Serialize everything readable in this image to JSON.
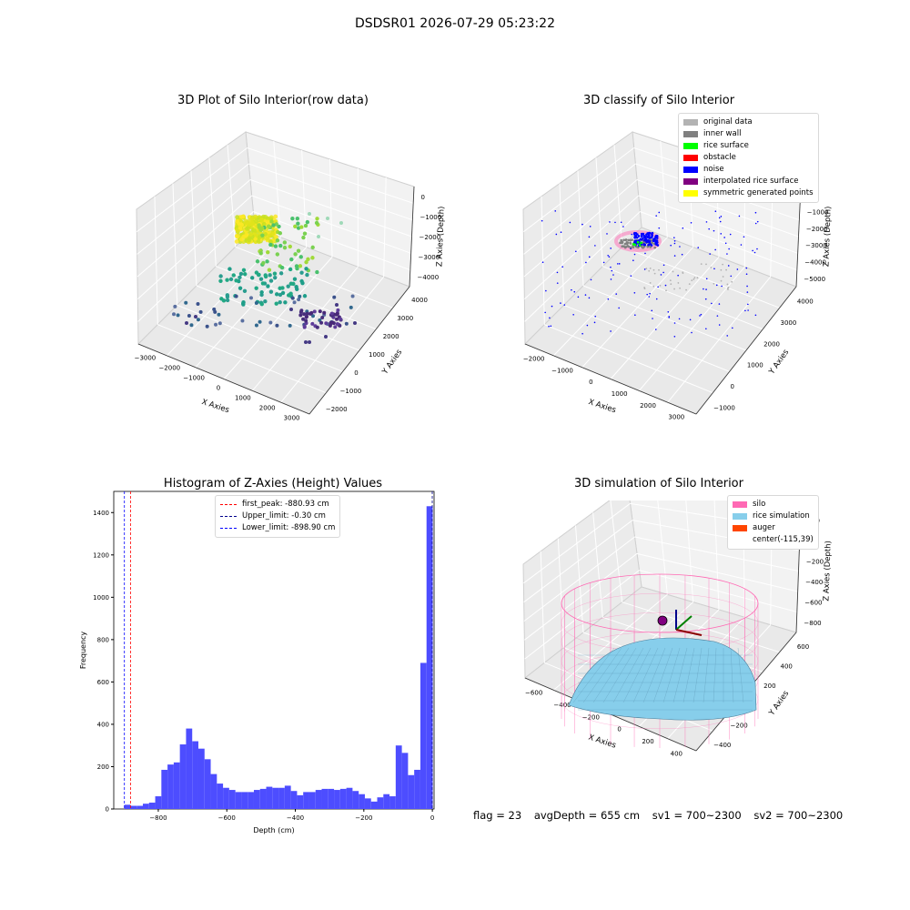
{
  "figure": {
    "suptitle": "DSDSR01 2026-07-29 05:23:22"
  },
  "panels": {
    "raw": {
      "title": "3D Plot of Silo Interior(row data)",
      "xlabel": "X Axies",
      "ylabel": "Y Axies",
      "zlabel": "Z Axies (Depth)",
      "xticks": [
        "−3000",
        "−2000",
        "−1000",
        "0",
        "1000",
        "2000",
        "3000"
      ],
      "yticks": [
        "−2000",
        "−1000",
        "0",
        "1000",
        "2000",
        "3000",
        "4000"
      ],
      "zticks": [
        "0",
        "−1000",
        "−2000",
        "−3000",
        "−4000"
      ]
    },
    "classify": {
      "title": "3D classify of Silo Interior",
      "xlabel": "X Axies",
      "ylabel": "Y Axies",
      "zlabel": "Z Axies (Depth)",
      "xticks": [
        "−2000",
        "−1000",
        "0",
        "1000",
        "2000",
        "3000"
      ],
      "yticks": [
        "−1000",
        "0",
        "1000",
        "2000",
        "3000",
        "4000"
      ],
      "zticks": [
        "0",
        "−1000",
        "−2000",
        "−3000",
        "−4000",
        "−5000"
      ],
      "legend": [
        {
          "label": "original data",
          "color": "#b3b3b3"
        },
        {
          "label": "inner wall",
          "color": "#808080"
        },
        {
          "label": "rice surface",
          "color": "#00ff00"
        },
        {
          "label": "obstacle",
          "color": "#ff0000"
        },
        {
          "label": "noise",
          "color": "#0000ff"
        },
        {
          "label": "interpolated rice surface",
          "color": "#800080"
        },
        {
          "label": "symmetric generated points",
          "color": "#ffff00"
        }
      ]
    },
    "histogram": {
      "title": "Histogram of Z-Axies (Height) Values",
      "xlabel": "Depth (cm)",
      "ylabel": "Frequency",
      "legend": [
        {
          "label": "first_peak: -880.93 cm",
          "color": "#ff0000"
        },
        {
          "label": "Upper_limit: -0.30 cm",
          "color": "#00008b"
        },
        {
          "label": "Lower_limit: -898.90 cm",
          "color": "#0000ff"
        }
      ]
    },
    "simulation": {
      "title": "3D simulation of Silo Interior",
      "xlabel": "X Axies",
      "ylabel": "Y Axies",
      "zlabel": "Z Axies (Depth)",
      "xticks": [
        "−600",
        "−400",
        "−200",
        "0",
        "200",
        "400"
      ],
      "yticks": [
        "−400",
        "−200",
        "0",
        "200",
        "400",
        "600"
      ],
      "zticks": [
        "200",
        "0",
        "−200",
        "−400",
        "−600",
        "−800"
      ],
      "legend": [
        {
          "label": "silo",
          "color": "#ff69b4"
        },
        {
          "label": "rice simulation",
          "color": "#87ceeb"
        },
        {
          "label": "auger",
          "color": "#ff4500"
        },
        {
          "label": "center(-115,39)",
          "color": ""
        }
      ]
    }
  },
  "footer": {
    "flag": "flag = 23",
    "avg": "avgDepth = 655 cm",
    "sv1": "sv1 = 700~2300",
    "sv2": "sv2 = 700~2300"
  },
  "chart_data": [
    {
      "type": "bar",
      "title": "Histogram of Z-Axies (Height) Values",
      "xlabel": "Depth (cm)",
      "ylabel": "Frequency",
      "xlim": [
        -930,
        5
      ],
      "ylim": [
        0,
        1500
      ],
      "xticks": [
        -800,
        -600,
        -400,
        -200,
        0
      ],
      "yticks": [
        0,
        200,
        400,
        600,
        800,
        1000,
        1200,
        1400
      ],
      "bin_width": 18,
      "bin_starts": [
        -899,
        -881,
        -863,
        -845,
        -827,
        -809,
        -791,
        -773,
        -755,
        -737,
        -719,
        -701,
        -683,
        -665,
        -647,
        -629,
        -611,
        -593,
        -575,
        -557,
        -539,
        -521,
        -503,
        -485,
        -467,
        -449,
        -431,
        -413,
        -395,
        -377,
        -359,
        -341,
        -323,
        -305,
        -287,
        -269,
        -251,
        -233,
        -215,
        -197,
        -179,
        -161,
        -143,
        -125,
        -107,
        -89,
        -71,
        -53,
        -35,
        -17
      ],
      "values": [
        20,
        15,
        15,
        25,
        30,
        60,
        185,
        210,
        220,
        305,
        380,
        320,
        285,
        235,
        165,
        120,
        100,
        90,
        80,
        80,
        80,
        90,
        95,
        105,
        100,
        100,
        110,
        85,
        65,
        80,
        80,
        90,
        95,
        95,
        90,
        95,
        100,
        85,
        70,
        50,
        35,
        55,
        70,
        60,
        300,
        265,
        160,
        185,
        690,
        1430
      ],
      "vlines": [
        {
          "label": "first_peak: -880.93 cm",
          "x": -880.93,
          "color": "#ff0000"
        },
        {
          "label": "Upper_limit: -0.30 cm",
          "x": -0.3,
          "color": "#00008b"
        },
        {
          "label": "Lower_limit: -898.90 cm",
          "x": -898.9,
          "color": "#0000ff"
        }
      ],
      "bar_color": "#4d4dff"
    }
  ]
}
